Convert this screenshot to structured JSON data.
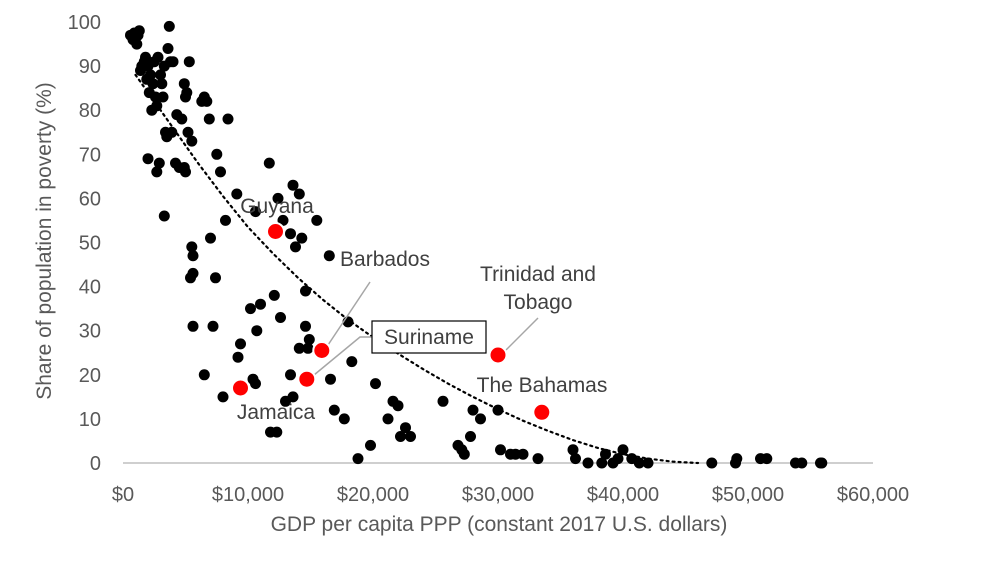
{
  "chart_data": {
    "type": "scatter",
    "title": "",
    "xlabel": "GDP per capita PPP (constant 2017 U.S. dollars)",
    "ylabel": "Share of population in poverty (%)",
    "xlim": [
      0,
      60000
    ],
    "ylim": [
      0,
      100
    ],
    "x_ticks": [
      0,
      10000,
      20000,
      30000,
      40000,
      50000,
      60000
    ],
    "x_tick_labels": [
      "$0",
      "$10,000",
      "$20,000",
      "$30,000",
      "$40,000",
      "$50,000",
      "$60,000"
    ],
    "y_ticks": [
      0,
      10,
      20,
      30,
      40,
      50,
      60,
      70,
      80,
      90,
      100
    ],
    "y_tick_labels": [
      "0",
      "10",
      "20",
      "30",
      "40",
      "50",
      "60",
      "70",
      "80",
      "90",
      "100"
    ],
    "grid": false,
    "colors": {
      "points": "#000000",
      "highlight": "#ff0000",
      "highlight_edge": "#ffffff",
      "axis": "#bfbfbf",
      "text": "#595959",
      "leader": "#a6a6a6"
    },
    "trendline": {
      "style": "dotted",
      "x": [
        1000,
        2500,
        4000,
        6000,
        8000,
        10000,
        12000,
        14000,
        16000,
        18000,
        20000,
        22000,
        24000,
        26000,
        28000,
        30000,
        32000,
        34000,
        36000,
        38000,
        40000,
        42000,
        44000,
        46000
      ],
      "y": [
        88,
        82,
        76,
        68,
        60.5,
        53.5,
        47.5,
        42,
        37,
        32.5,
        28.5,
        24.8,
        21.3,
        18,
        15,
        12.2,
        9.6,
        7.3,
        5.2,
        3.4,
        2,
        1,
        0.3,
        0
      ]
    },
    "series": [
      {
        "points": [
          [
            600,
            97
          ],
          [
            800,
            96
          ],
          [
            900,
            97.5
          ],
          [
            1100,
            95
          ],
          [
            1200,
            97
          ],
          [
            1300,
            98
          ],
          [
            1400,
            89
          ],
          [
            1500,
            90
          ],
          [
            1700,
            91
          ],
          [
            1800,
            92
          ],
          [
            1900,
            87
          ],
          [
            2000,
            90
          ],
          [
            2100,
            84
          ],
          [
            2200,
            88
          ],
          [
            2300,
            80
          ],
          [
            2400,
            86
          ],
          [
            2500,
            91
          ],
          [
            2600,
            83
          ],
          [
            2700,
            81
          ],
          [
            2800,
            92
          ],
          [
            3000,
            88
          ],
          [
            3100,
            86
          ],
          [
            3200,
            83
          ],
          [
            3300,
            90
          ],
          [
            3400,
            75
          ],
          [
            3500,
            74
          ],
          [
            3600,
            94
          ],
          [
            3700,
            99
          ],
          [
            3800,
            91
          ],
          [
            3900,
            75
          ],
          [
            4000,
            91
          ],
          [
            4300,
            79
          ],
          [
            4500,
            67
          ],
          [
            4700,
            78
          ],
          [
            4900,
            86
          ],
          [
            5000,
            83
          ],
          [
            5100,
            84
          ],
          [
            5200,
            75
          ],
          [
            5300,
            91
          ],
          [
            5500,
            73
          ],
          [
            6300,
            82
          ],
          [
            6500,
            83
          ],
          [
            6700,
            82
          ],
          [
            6900,
            78
          ],
          [
            7000,
            51
          ],
          [
            2000,
            69
          ],
          [
            2700,
            66
          ],
          [
            2900,
            68
          ],
          [
            3300,
            56
          ],
          [
            4200,
            68
          ],
          [
            4900,
            67
          ],
          [
            5000,
            66
          ],
          [
            7500,
            70
          ],
          [
            7800,
            66
          ],
          [
            8200,
            55
          ],
          [
            8400,
            78
          ],
          [
            9100,
            61
          ],
          [
            10600,
            57
          ],
          [
            11700,
            68
          ],
          [
            12400,
            60
          ],
          [
            12800,
            55
          ],
          [
            13400,
            52
          ],
          [
            13600,
            63
          ],
          [
            13800,
            49
          ],
          [
            14100,
            61
          ],
          [
            14300,
            51
          ],
          [
            15500,
            55
          ],
          [
            16500,
            47
          ],
          [
            5500,
            49
          ],
          [
            5600,
            47
          ],
          [
            5600,
            43
          ],
          [
            5400,
            42
          ],
          [
            5600,
            31
          ],
          [
            6500,
            20
          ],
          [
            7200,
            31
          ],
          [
            7400,
            42
          ],
          [
            8000,
            15
          ],
          [
            9200,
            24
          ],
          [
            9400,
            27
          ],
          [
            10200,
            35
          ],
          [
            10400,
            19
          ],
          [
            10600,
            18
          ],
          [
            10700,
            30
          ],
          [
            11000,
            36
          ],
          [
            11800,
            7
          ],
          [
            12100,
            38
          ],
          [
            12300,
            7
          ],
          [
            12600,
            33
          ],
          [
            13000,
            14
          ],
          [
            13400,
            20
          ],
          [
            13600,
            15
          ],
          [
            14100,
            26
          ],
          [
            14600,
            31
          ],
          [
            14800,
            26
          ],
          [
            14600,
            39
          ],
          [
            14900,
            28
          ],
          [
            16600,
            19
          ],
          [
            16900,
            12
          ],
          [
            17700,
            10
          ],
          [
            18000,
            32
          ],
          [
            18300,
            23
          ],
          [
            18800,
            1
          ],
          [
            19800,
            4
          ],
          [
            20200,
            18
          ],
          [
            21200,
            10
          ],
          [
            21600,
            14
          ],
          [
            22000,
            13
          ],
          [
            22200,
            6
          ],
          [
            22600,
            8
          ],
          [
            23000,
            6
          ],
          [
            25600,
            14
          ],
          [
            26800,
            4
          ],
          [
            27100,
            3
          ],
          [
            27300,
            2
          ],
          [
            27800,
            6
          ],
          [
            28000,
            12
          ],
          [
            28600,
            10
          ],
          [
            30000,
            12
          ],
          [
            30200,
            3
          ],
          [
            31000,
            2
          ],
          [
            31400,
            2
          ],
          [
            32000,
            2
          ],
          [
            33200,
            1
          ],
          [
            36000,
            3
          ],
          [
            36200,
            1
          ],
          [
            37200,
            0
          ],
          [
            38300,
            0
          ],
          [
            38600,
            2
          ],
          [
            39200,
            0
          ],
          [
            39600,
            1
          ],
          [
            40000,
            3
          ],
          [
            40700,
            1
          ],
          [
            41300,
            0
          ],
          [
            42000,
            0
          ],
          [
            47100,
            0
          ],
          [
            49000,
            0
          ],
          [
            49100,
            1
          ],
          [
            51000,
            1
          ],
          [
            51500,
            1
          ],
          [
            53800,
            0
          ],
          [
            54300,
            0
          ],
          [
            55800,
            0
          ],
          [
            55900,
            0
          ]
        ]
      }
    ],
    "highlighted": [
      {
        "label": "Guyana",
        "x": 12200,
        "y": 52.5
      },
      {
        "label": "Barbados",
        "x": 15900,
        "y": 25.5
      },
      {
        "label": "Trinidad and Tobago",
        "x": 30000,
        "y": 24.5
      },
      {
        "label": "Suriname",
        "x": 14700,
        "y": 19
      },
      {
        "label": "Jamaica",
        "x": 9400,
        "y": 17
      },
      {
        "label": "The Bahamas",
        "x": 33500,
        "y": 11.5
      }
    ],
    "annotations": {
      "guyana": "Guyana",
      "barbados": "Barbados",
      "trinidad_line1": "Trinidad and",
      "trinidad_line2": "Tobago",
      "suriname": "Suriname",
      "jamaica": "Jamaica",
      "bahamas": "The Bahamas"
    }
  }
}
